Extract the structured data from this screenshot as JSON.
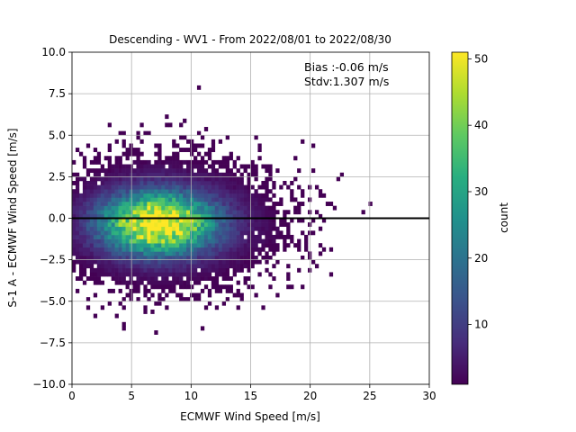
{
  "chart_data": {
    "type": "heatmap",
    "title": "Descending - WV1 - From 2022/08/01 to 2022/08/30",
    "xlabel": "ECMWF Wind Speed [m/s]",
    "ylabel": "S-1 A - ECMWF Wind Speed [m/s]",
    "xlim": [
      0,
      30
    ],
    "ylim": [
      -10,
      10
    ],
    "xticks": [
      "0",
      "5",
      "10",
      "15",
      "20",
      "25",
      "30"
    ],
    "yticks": [
      "−10.0",
      "−7.5",
      "−5.0",
      "−2.5",
      "0.0",
      "2.5",
      "5.0",
      "7.5",
      "10.0"
    ],
    "grid": true,
    "annotation_lines": [
      "Bias :-0.06 m/s",
      "Stdv:1.307 m/s"
    ],
    "reference_line_y": 0,
    "colorbar": {
      "label": "count",
      "colormap": "viridis",
      "range": [
        1,
        51
      ],
      "ticks": [
        "10",
        "20",
        "30",
        "40",
        "50"
      ]
    },
    "density_model": {
      "peak_count": 51,
      "center_x": 7.2,
      "center_y": -0.3,
      "bin_width_x": 0.3,
      "bin_width_y": 0.25
    }
  }
}
